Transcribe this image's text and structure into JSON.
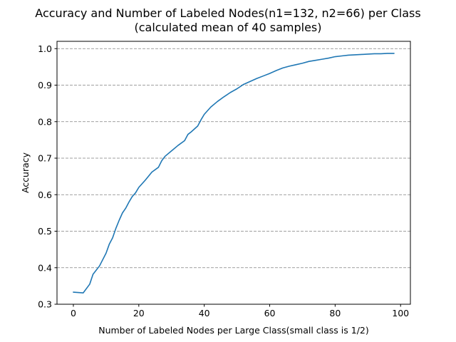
{
  "chart_data": {
    "type": "line",
    "title": "Accuracy and Number of Labeled Nodes(n1=132, n2=66) per Class",
    "subtitle": "(calculated mean of 40 samples)",
    "xlabel": "Number of Labeled Nodes per Large Class(small class is 1/2)",
    "ylabel": "Accuracy",
    "xlim": [
      -5,
      103
    ],
    "ylim": [
      0.3,
      1.02
    ],
    "xticks": [
      0,
      20,
      40,
      60,
      80,
      100
    ],
    "yticks": [
      0.3,
      0.4,
      0.5,
      0.6,
      0.7,
      0.8,
      0.9,
      1.0
    ],
    "xtick_labels": [
      "0",
      "20",
      "40",
      "60",
      "80",
      "100"
    ],
    "ytick_labels": [
      "0.3",
      "0.4",
      "0.5",
      "0.6",
      "0.7",
      "0.8",
      "0.9",
      "1.0"
    ],
    "grid": "horizontal dashed",
    "line_color": "#1f77b4",
    "series": [
      {
        "x": [
          0,
          3,
          5,
          6,
          8,
          10,
          11,
          12,
          13,
          14,
          15,
          16,
          17,
          18,
          19,
          20,
          22,
          24,
          26,
          27,
          28,
          30,
          32,
          34,
          35,
          36,
          38,
          39,
          40,
          42,
          44,
          46,
          48,
          50,
          52,
          54,
          56,
          58,
          60,
          62,
          64,
          66,
          68,
          70,
          72,
          74,
          76,
          78,
          80,
          82,
          84,
          86,
          88,
          90,
          92,
          94,
          96,
          98
        ],
        "values": [
          0.333,
          0.331,
          0.355,
          0.382,
          0.405,
          0.44,
          0.465,
          0.482,
          0.508,
          0.53,
          0.55,
          0.563,
          0.58,
          0.595,
          0.605,
          0.62,
          0.64,
          0.662,
          0.675,
          0.693,
          0.705,
          0.72,
          0.735,
          0.748,
          0.765,
          0.772,
          0.788,
          0.805,
          0.82,
          0.84,
          0.855,
          0.868,
          0.88,
          0.89,
          0.902,
          0.91,
          0.918,
          0.925,
          0.932,
          0.94,
          0.947,
          0.952,
          0.956,
          0.96,
          0.965,
          0.968,
          0.971,
          0.974,
          0.978,
          0.98,
          0.982,
          0.983,
          0.984,
          0.985,
          0.986,
          0.986,
          0.987,
          0.987
        ]
      }
    ]
  }
}
